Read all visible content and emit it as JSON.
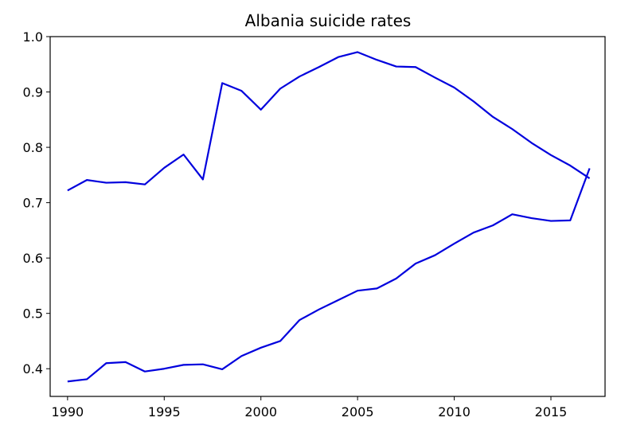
{
  "chart_data": {
    "type": "line",
    "title": "Albania suicide rates",
    "xlabel": "",
    "ylabel": "",
    "xlim": [
      1989.1,
      2017.8
    ],
    "ylim": [
      0.35,
      1.0
    ],
    "xticks": [
      1990,
      1995,
      2000,
      2005,
      2010,
      2015
    ],
    "yticks": [
      0.4,
      0.5,
      0.6,
      0.7,
      0.8,
      0.9,
      1.0
    ],
    "xtick_labels": [
      "1990",
      "1995",
      "2000",
      "2005",
      "2010",
      "2015"
    ],
    "ytick_labels": [
      "0.4",
      "0.5",
      "0.6",
      "0.7",
      "0.8",
      "0.9",
      "1.0"
    ],
    "grid": false,
    "legend": "none",
    "line_color": "#0000dd",
    "x": [
      1990,
      1991,
      1992,
      1993,
      1994,
      1995,
      1996,
      1997,
      1998,
      1999,
      2000,
      2001,
      2002,
      2003,
      2004,
      2005,
      2006,
      2007,
      2008,
      2009,
      2010,
      2011,
      2012,
      2013,
      2014,
      2015,
      2016,
      2017
    ],
    "series": [
      {
        "values": [
          0.722,
          0.741,
          0.736,
          0.737,
          0.733,
          0.763,
          0.787,
          0.742,
          0.916,
          0.902,
          0.868,
          0.906,
          0.928,
          0.945,
          0.963,
          0.972,
          0.958,
          0.946,
          0.945,
          0.926,
          0.908,
          0.883,
          0.855,
          0.833,
          0.808,
          0.786,
          0.767,
          0.744
        ]
      },
      {
        "values": [
          0.377,
          0.381,
          0.41,
          0.412,
          0.395,
          0.4,
          0.407,
          0.408,
          0.399,
          0.423,
          0.438,
          0.45,
          0.488,
          0.507,
          0.524,
          0.541,
          0.545,
          0.563,
          0.59,
          0.605,
          0.626,
          0.646,
          0.659,
          0.679,
          0.672,
          0.667,
          0.668,
          0.762
        ]
      }
    ]
  }
}
